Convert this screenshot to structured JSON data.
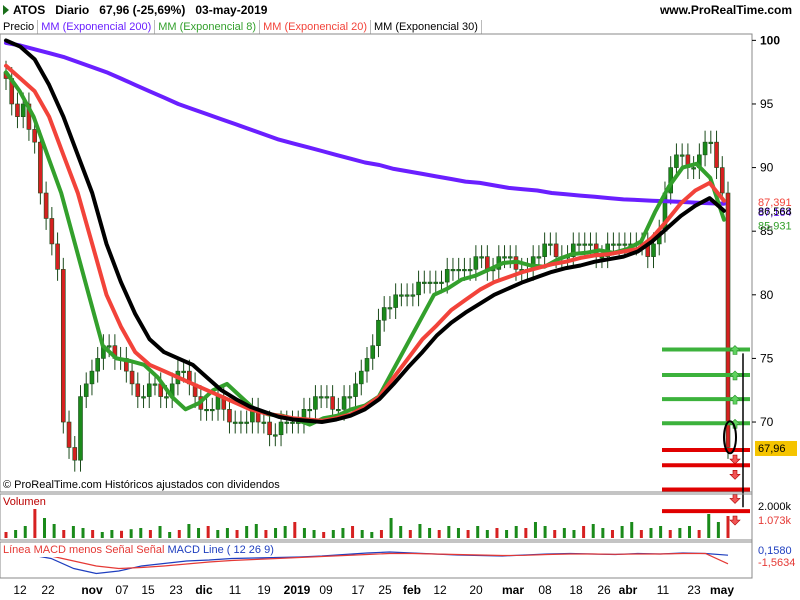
{
  "header": {
    "ticker": "ATOS",
    "period": "Diario",
    "price_info": "67,96 (-25,69%)",
    "date": "03-may-2019",
    "site": "www.ProRealTime.com"
  },
  "legend": [
    {
      "label": "Precio",
      "color": "#000000"
    },
    {
      "label": "MM (Exponencial 200)",
      "color": "#6a1fff"
    },
    {
      "label": "MM (Exponencial 8)",
      "color": "#33a02c"
    },
    {
      "label": "MM (Exponencial 20)",
      "color": "#f2433a"
    },
    {
      "label": "MM (Exponencial 30)",
      "color": "#000000"
    }
  ],
  "copyright": "© ProRealTime.com Históricos ajustados con dividendos",
  "volume_label": "Volumen",
  "macd_labels": [
    "Línea MACD menos Señal",
    "Señal",
    "MACD Line ( 12 26 9)"
  ],
  "chart_data": [
    {
      "type": "candlestick",
      "title": "ATOS Diario",
      "price_axis_ticks": [
        100,
        95,
        90,
        85,
        80,
        75,
        70
      ],
      "ylim": [
        64.5,
        100.5
      ],
      "value_labels": [
        {
          "text": "87,391",
          "color": "#f2433a"
        },
        {
          "text": "87,164",
          "color": "#6a1fff"
        },
        {
          "text": "86,568",
          "color": "#000000"
        },
        {
          "text": "85,931",
          "color": "#33a02c"
        },
        {
          "text": "67,96",
          "color": "#f5c400"
        }
      ],
      "x_ticks": [
        "12",
        "22",
        "nov",
        "07",
        "15",
        "23",
        "dic",
        "11",
        "19",
        "2019",
        "09",
        "17",
        "25",
        "feb",
        "12",
        "20",
        "mar",
        "08",
        "18",
        "26",
        "abr",
        "11",
        "23",
        "may"
      ],
      "closes": [
        97,
        95,
        94,
        95,
        93,
        92,
        88,
        86,
        84,
        82,
        70,
        68,
        67,
        72,
        73,
        74,
        75,
        76,
        76,
        75,
        75,
        74,
        73,
        72,
        72,
        73,
        73,
        72,
        72,
        73,
        74,
        74,
        73,
        72,
        71,
        71,
        71,
        72,
        71,
        70,
        70,
        70,
        70,
        71,
        70,
        70,
        69,
        69,
        70,
        70,
        70,
        70,
        71,
        71,
        72,
        72,
        72,
        71,
        71,
        72,
        72,
        73,
        74,
        75,
        76,
        78,
        79,
        79,
        80,
        80,
        80,
        80,
        81,
        81,
        81,
        81,
        81,
        82,
        82,
        82,
        82,
        82,
        83,
        83,
        82,
        82,
        83,
        83,
        83,
        82,
        82,
        82,
        83,
        83,
        84,
        84,
        83,
        83,
        83,
        84,
        84,
        84,
        84,
        83,
        83,
        84,
        84,
        84,
        84,
        84,
        84,
        84,
        83,
        84,
        85,
        88,
        90,
        91,
        91,
        90,
        90,
        91,
        92,
        92,
        90,
        88,
        68
      ],
      "series": [
        {
          "name": "MM (Exponencial 200)",
          "color": "#6a1fff",
          "values": [
            99.8,
            99.6,
            99.3,
            99.0,
            98.7,
            98.3,
            97.9,
            97.5,
            97.0,
            96.5,
            96.0,
            95.5,
            95.0,
            94.6,
            94.2,
            93.8,
            93.4,
            93.0,
            92.6,
            92.2,
            91.9,
            91.6,
            91.3,
            91.0,
            90.7,
            90.4,
            90.2,
            89.9,
            89.7,
            89.5,
            89.3,
            89.1,
            88.9,
            88.8,
            88.6,
            88.4,
            88.3,
            88.2,
            88.0,
            87.9,
            87.8,
            87.7,
            87.6,
            87.5,
            87.45,
            87.4,
            87.35,
            87.3,
            87.25,
            87.2,
            87.16
          ]
        },
        {
          "name": "MM (Exponencial 8)",
          "color": "#33a02c",
          "values": [
            97.5,
            96,
            94,
            91,
            88,
            84,
            80,
            76,
            75,
            74.8,
            74.5,
            73.5,
            72,
            71,
            71.5,
            72.5,
            73,
            72,
            71,
            70.6,
            70.5,
            70.2,
            69.8,
            70.3,
            70.5,
            71,
            71.3,
            72,
            74,
            76,
            78,
            80,
            80.5,
            81.2,
            81.5,
            82,
            82.5,
            82.6,
            82.3,
            82.2,
            82.8,
            83.2,
            83.3,
            83.5,
            83.3,
            83.6,
            84.2,
            86.5,
            88.5,
            90,
            90.3,
            89.2,
            85.9
          ]
        },
        {
          "name": "MM (Exponencial 20)",
          "color": "#f2433a",
          "values": [
            98,
            97,
            96,
            94,
            91,
            88,
            84,
            80,
            77.5,
            75.5,
            74.5,
            74,
            73.5,
            73,
            72.5,
            72,
            71.5,
            71,
            70.7,
            70.5,
            70.3,
            70.2,
            70.1,
            70.3,
            70.6,
            71.2,
            72,
            73.5,
            75,
            76.5,
            77.6,
            78.8,
            79.6,
            80.4,
            81,
            81.4,
            81.8,
            82.1,
            82.4,
            82.6,
            82.9,
            83.1,
            83.2,
            83.4,
            83.6,
            84.5,
            85.8,
            87.2,
            88.2,
            88.8,
            87.4
          ]
        },
        {
          "name": "MM (Exponencial 30)",
          "color": "#000000",
          "values": [
            100,
            99.5,
            98.5,
            96.5,
            94,
            91,
            88,
            84,
            81,
            78.5,
            76.5,
            75.5,
            75,
            74.5,
            73.5,
            72.5,
            71.8,
            71.2,
            70.8,
            70.4,
            70.2,
            70.1,
            70,
            70.2,
            70.5,
            71,
            71.8,
            73,
            74.3,
            75.5,
            76.8,
            77.8,
            78.6,
            79.3,
            80,
            80.5,
            81,
            81.4,
            81.8,
            82.1,
            82.3,
            82.6,
            82.8,
            83,
            83.4,
            84.2,
            85.2,
            86.2,
            87,
            87.6,
            86.6
          ]
        }
      ],
      "levels": {
        "green": [
          75.7,
          73.7,
          71.8,
          69.9
        ],
        "red": [
          67.8,
          66.6,
          64.7,
          63.0
        ]
      }
    },
    {
      "type": "bar",
      "title": "Volumen",
      "value_labels": [
        {
          "text": "2.000k",
          "color": "#000000"
        },
        {
          "text": "1.073k",
          "color": "#e53935"
        }
      ],
      "values": [
        0.15,
        0.2,
        0.3,
        0.9,
        0.5,
        0.35,
        0.2,
        0.3,
        0.25,
        0.2,
        0.15,
        0.2,
        0.18,
        0.22,
        0.25,
        0.2,
        0.3,
        0.15,
        0.2,
        0.35,
        0.25,
        0.3,
        0.2,
        0.25,
        0.2,
        0.3,
        0.35,
        0.2,
        0.25,
        0.3,
        0.4,
        0.25,
        0.2,
        0.15,
        0.2,
        0.25,
        0.3,
        0.2,
        0.15,
        0.2,
        0.5,
        0.3,
        0.2,
        0.35,
        0.25,
        0.2,
        0.3,
        0.25,
        0.2,
        0.3,
        0.2,
        0.25,
        0.2,
        0.3,
        0.25,
        0.4,
        0.3,
        0.2,
        0.25,
        0.2,
        0.3,
        0.35,
        0.25,
        0.2,
        0.3,
        0.4,
        0.2,
        0.25,
        0.3,
        0.2,
        0.25,
        0.3,
        0.2,
        0.6,
        0.4,
        0.55
      ]
    },
    {
      "type": "line",
      "title": "MACD",
      "value_labels": [
        {
          "text": "0,1580",
          "color": "#1f3fbf"
        },
        {
          "text": "-1,5634",
          "color": "#e53935"
        }
      ],
      "series": [
        {
          "name": "MACD Line",
          "color": "#1f3fbf",
          "values": [
            0.5,
            0.3,
            -0.5,
            -2.5,
            -3.5,
            -3.0,
            -2.0,
            -1.5,
            -1.0,
            -0.8,
            -0.5,
            -0.4,
            -0.3,
            -0.2,
            0.0,
            0.3,
            0.6,
            0.8,
            0.6,
            0.4,
            0.2,
            0.1,
            0.0,
            0.2,
            0.4,
            0.5,
            0.4,
            0.3,
            0.5,
            0.4,
            0.6,
            0.5,
            0.16
          ]
        },
        {
          "name": "Señal",
          "color": "#e53935",
          "values": [
            0.4,
            0.3,
            0.0,
            -1.0,
            -2.0,
            -2.5,
            -2.3,
            -2.0,
            -1.6,
            -1.2,
            -0.9,
            -0.7,
            -0.5,
            -0.3,
            -0.1,
            0.1,
            0.3,
            0.5,
            0.5,
            0.4,
            0.3,
            0.2,
            0.1,
            0.15,
            0.3,
            0.4,
            0.4,
            0.35,
            0.4,
            0.4,
            0.5,
            0.5,
            -1.56
          ]
        }
      ]
    }
  ]
}
